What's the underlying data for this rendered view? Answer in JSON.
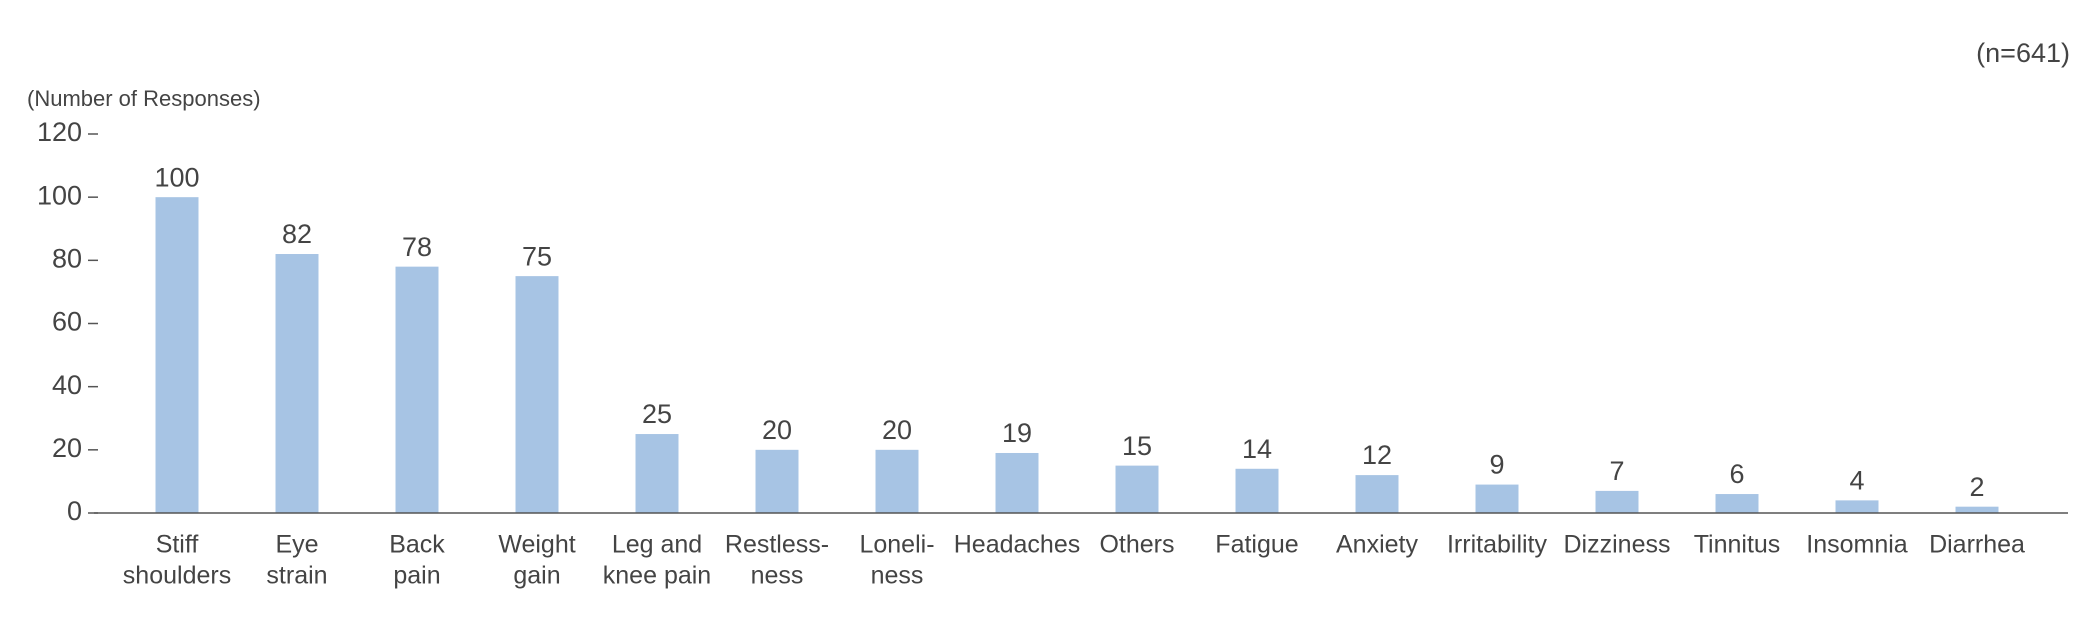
{
  "chart_data": {
    "type": "bar",
    "note": "(n=641)",
    "y_label": "(Number of Responses)",
    "categories": [
      [
        "Stiff",
        "shoulders"
      ],
      [
        "Eye",
        "strain"
      ],
      [
        "Back",
        "pain"
      ],
      [
        "Weight",
        "gain"
      ],
      [
        "Leg and",
        "knee pain"
      ],
      [
        "Restless-",
        "ness"
      ],
      [
        "Loneli-",
        "ness"
      ],
      [
        "Headaches"
      ],
      [
        "Others"
      ],
      [
        "Fatigue"
      ],
      [
        "Anxiety"
      ],
      [
        "Irritability"
      ],
      [
        "Dizziness"
      ],
      [
        "Tinnitus"
      ],
      [
        "Insomnia"
      ],
      [
        "Diarrhea"
      ]
    ],
    "values": [
      100,
      82,
      78,
      75,
      25,
      20,
      20,
      19,
      15,
      14,
      12,
      9,
      7,
      6,
      4,
      2
    ],
    "color": "#a7c4e4",
    "ylim": [
      0,
      120
    ],
    "yticks": [
      0,
      20,
      40,
      60,
      80,
      100,
      120
    ]
  }
}
